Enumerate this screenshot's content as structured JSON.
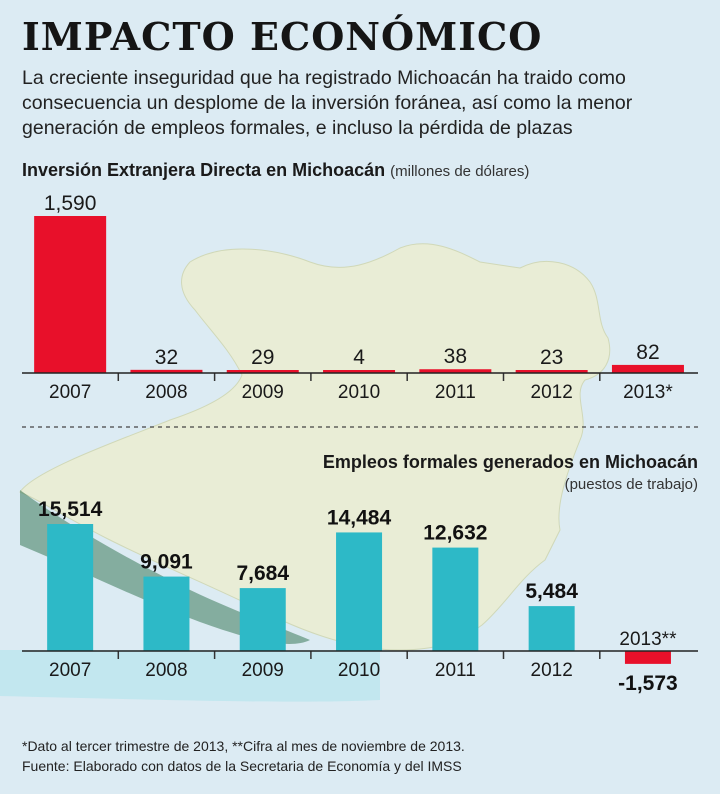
{
  "header": {
    "title": "IMPACTO ECONÓMICO",
    "intro": "La creciente inseguridad que ha registrado Michoacán ha traido como consecuencia un desplome de la inversión foránea, así como la menor generación de empleos formales, e incluso la pérdida de plazas"
  },
  "chart_data": [
    {
      "type": "bar",
      "title": "Inversión Extranjera Directa en Michoacán",
      "subtitle": "(millones de dólares)",
      "categories": [
        "2007",
        "2008",
        "2009",
        "2010",
        "2011",
        "2012",
        "2013*"
      ],
      "values": [
        1590,
        32,
        29,
        4,
        38,
        23,
        82
      ],
      "value_labels": [
        "1,590",
        "32",
        "29",
        "4",
        "38",
        "23",
        "82"
      ],
      "color": "#e8102a",
      "ylim": [
        0,
        1590
      ],
      "grid": false
    },
    {
      "type": "bar",
      "title": "Empleos formales generados en Michoacán",
      "subtitle": "(puestos de trabajo)",
      "categories": [
        "2007",
        "2008",
        "2009",
        "2010",
        "2011",
        "2012",
        "2013**"
      ],
      "values": [
        15514,
        9091,
        7684,
        14484,
        12632,
        5484,
        -1573
      ],
      "value_labels": [
        "15,514",
        "9,091",
        "7,684",
        "14,484",
        "12,632",
        "5,484",
        "-1,573"
      ],
      "colors": {
        "positive": "#2db9c7",
        "negative": "#e8102a"
      },
      "ylim": [
        -1573,
        15514
      ],
      "grid": false
    }
  ],
  "footnotes": {
    "note": "*Dato al tercer trimestre de 2013, **Cifra al mes de noviembre de 2013.",
    "source": "Fuente: Elaborado con datos de la Secretaria de Economía y del IMSS"
  }
}
